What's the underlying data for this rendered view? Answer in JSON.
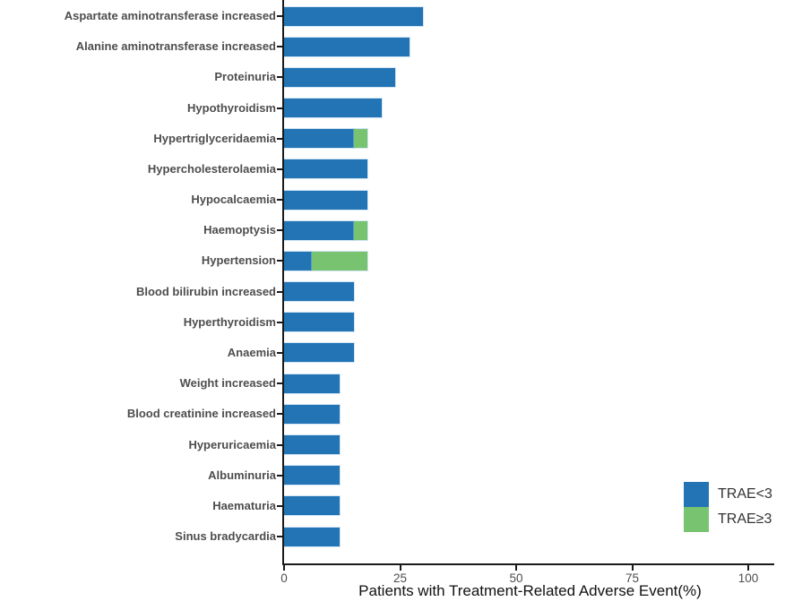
{
  "chart_data": {
    "type": "bar",
    "orientation": "horizontal",
    "stacked": true,
    "title": "",
    "xlabel": "Patients with Treatment-Related Adverse Event(%)",
    "ylabel": "",
    "xlim": [
      0,
      106
    ],
    "xticks": [
      0,
      25,
      50,
      75,
      100
    ],
    "grid": false,
    "legend_position": "right-bottom",
    "categories": [
      "Aspartate aminotransferase increased",
      "Alanine aminotransferase increased",
      "Proteinuria",
      "Hypothyroidism",
      "Hypertriglyceridaemia",
      "Hypercholesterolaemia",
      "Hypocalcaemia",
      "Haemoptysis",
      "Hypertension",
      "Blood bilirubin increased",
      "Hyperthyroidism",
      "Anaemia",
      "Weight increased",
      "Blood creatinine increased",
      "Hyperuricaemia",
      "Albuminuria",
      "Haematuria",
      "Sinus bradycardia"
    ],
    "series": [
      {
        "name": "TRAE<3",
        "color": "#2274b5",
        "values": [
          30,
          27,
          24,
          21,
          15,
          18,
          18,
          15,
          6,
          15,
          15,
          15,
          12,
          12,
          12,
          12,
          12,
          12
        ]
      },
      {
        "name": "TRAE≥3",
        "color": "#77c36f",
        "values": [
          0,
          0,
          0,
          0,
          3,
          0,
          0,
          3,
          12,
          0,
          0,
          0,
          0,
          0,
          0,
          0,
          0,
          0
        ]
      }
    ]
  },
  "colors": {
    "axis": "#1a1a1a",
    "tick_label": "#4d4d4d",
    "category_label": "#4d4d4d",
    "title": "#111111"
  }
}
